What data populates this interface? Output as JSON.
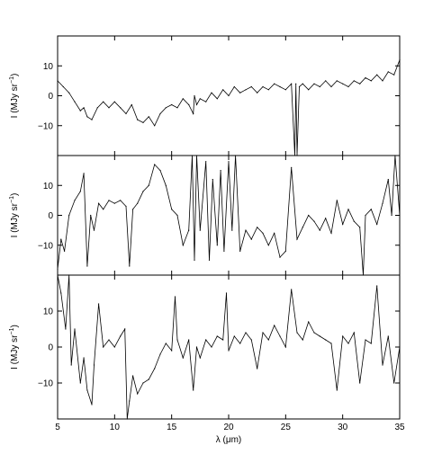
{
  "chart_data": [
    {
      "type": "line",
      "ylabel": "I (MJy sr",
      "ylabel_sup": "−1",
      "ylabel_close": ")",
      "xlim": [
        5,
        35
      ],
      "ylim": [
        -20,
        20
      ],
      "xticks": [
        5,
        10,
        15,
        20,
        25,
        30,
        35
      ],
      "yticks": [
        -10,
        0,
        10
      ],
      "ytick_labels": [
        "−10",
        "0",
        "10"
      ],
      "grid": false,
      "series": [
        {
          "x": [
            5.0,
            5.5,
            6.0,
            6.5,
            7.0,
            7.3,
            7.6,
            8.0,
            8.5,
            9.0,
            9.5,
            10.0,
            10.5,
            11.0,
            11.5,
            12.0,
            12.5,
            13.0,
            13.5,
            14.0,
            14.5,
            15.0,
            15.5,
            16.0,
            16.5,
            16.9,
            17.0,
            17.2,
            17.5,
            18.0,
            18.5,
            19.0,
            19.5,
            20.0,
            20.5,
            21.0,
            21.5,
            22.0,
            22.5,
            23.0,
            23.5,
            24.0,
            24.5,
            25.0,
            25.5,
            25.8,
            25.9,
            26.0,
            26.2,
            26.5,
            27.0,
            27.5,
            28.0,
            28.5,
            29.0,
            29.5,
            30.0,
            30.5,
            31.0,
            31.5,
            32.0,
            32.5,
            33.0,
            33.5,
            34.0,
            34.5,
            35.0
          ],
          "y": [
            5,
            3,
            1,
            -2,
            -5,
            -4,
            -7,
            -8,
            -4,
            -2,
            -4,
            -2,
            -4,
            -6,
            -3,
            -8,
            -9,
            -7,
            -10,
            -6,
            -4,
            -3,
            -4,
            -1,
            -3,
            -6,
            0,
            -3,
            -1,
            -2,
            1,
            -1,
            2,
            0,
            3,
            1,
            2,
            3,
            1,
            3,
            2,
            4,
            3,
            2,
            4,
            -20,
            4,
            -20,
            3,
            4,
            2,
            4,
            3,
            5,
            3,
            5,
            4,
            3,
            5,
            4,
            6,
            5,
            7,
            5,
            8,
            7,
            12
          ]
        }
      ]
    },
    {
      "type": "line",
      "ylabel": "I (MJy sr",
      "ylabel_sup": "−1",
      "ylabel_close": ")",
      "xlim": [
        5,
        35
      ],
      "ylim": [
        -20,
        20
      ],
      "xticks": [
        5,
        10,
        15,
        20,
        25,
        30,
        35
      ],
      "yticks": [
        -10,
        0,
        10
      ],
      "ytick_labels": [
        "−10",
        "0",
        "10"
      ],
      "grid": false,
      "series": [
        {
          "x": [
            5.0,
            5.3,
            5.6,
            6.0,
            6.5,
            7.0,
            7.3,
            7.6,
            7.9,
            8.2,
            8.6,
            9.0,
            9.5,
            10.0,
            10.5,
            11.0,
            11.3,
            11.6,
            12.0,
            12.5,
            13.0,
            13.5,
            14.0,
            14.5,
            15.0,
            15.5,
            16.0,
            16.5,
            16.8,
            17.0,
            17.2,
            17.5,
            18.0,
            18.3,
            18.6,
            19.0,
            19.3,
            19.6,
            20.0,
            20.3,
            20.6,
            21.0,
            21.5,
            22.0,
            22.5,
            23.0,
            23.5,
            24.0,
            24.5,
            25.0,
            25.5,
            26.0,
            26.5,
            27.0,
            27.5,
            28.0,
            28.5,
            29.0,
            29.5,
            30.0,
            30.5,
            31.0,
            31.5,
            31.8,
            32.0,
            32.5,
            33.0,
            33.5,
            34.0,
            34.3,
            34.6,
            35.0
          ],
          "y": [
            -18,
            -8,
            -12,
            0,
            5,
            8,
            14,
            -17,
            0,
            -5,
            4,
            2,
            5,
            4,
            5,
            3,
            -17,
            2,
            4,
            8,
            10,
            17,
            15,
            10,
            2,
            0,
            -10,
            -5,
            20,
            -15,
            20,
            -5,
            18,
            -15,
            12,
            -10,
            15,
            -12,
            18,
            -5,
            20,
            -12,
            -5,
            -8,
            -4,
            -6,
            -10,
            -6,
            -14,
            -12,
            16,
            -8,
            -4,
            0,
            -2,
            -5,
            -1,
            -6,
            5,
            -3,
            2,
            -2,
            -4,
            -20,
            0,
            2,
            -3,
            4,
            12,
            0,
            20,
            0
          ]
        }
      ]
    },
    {
      "type": "line",
      "ylabel": "I (MJy sr",
      "ylabel_sup": "−1",
      "ylabel_close": ")",
      "xlabel": "λ (μm)",
      "xlim": [
        5,
        35
      ],
      "ylim": [
        -20,
        20
      ],
      "xticks": [
        5,
        10,
        15,
        20,
        25,
        30,
        35
      ],
      "yticks": [
        -10,
        0,
        10
      ],
      "ytick_labels": [
        "−10",
        "0",
        "10"
      ],
      "grid": false,
      "series": [
        {
          "x": [
            5.0,
            5.3,
            5.7,
            6.0,
            6.2,
            6.5,
            7.0,
            7.3,
            7.6,
            8.0,
            8.2,
            8.6,
            9.0,
            9.5,
            10.0,
            10.5,
            10.9,
            11.1,
            11.3,
            11.6,
            12.0,
            12.5,
            13.0,
            13.5,
            14.0,
            14.5,
            15.0,
            15.3,
            15.5,
            16.0,
            16.5,
            16.9,
            17.2,
            17.5,
            18.0,
            18.5,
            19.0,
            19.5,
            19.8,
            20.0,
            20.5,
            21.0,
            21.5,
            22.0,
            22.5,
            23.0,
            23.5,
            24.0,
            24.5,
            25.0,
            25.5,
            26.0,
            26.5,
            27.0,
            27.5,
            28.0,
            28.5,
            29.0,
            29.5,
            30.0,
            30.5,
            31.0,
            31.5,
            32.0,
            32.5,
            33.0,
            33.5,
            34.0,
            34.5,
            35.0
          ],
          "y": [
            20,
            15,
            5,
            20,
            -5,
            5,
            -10,
            -3,
            -12,
            -16,
            -5,
            12,
            0,
            2,
            0,
            3,
            5,
            -20,
            -15,
            -8,
            -13,
            -10,
            -9,
            -6,
            -2,
            1,
            -1,
            14,
            2,
            -3,
            2,
            -12,
            0,
            -3,
            2,
            0,
            3,
            2,
            15,
            -1,
            3,
            1,
            4,
            2,
            -6,
            4,
            2,
            6,
            3,
            0,
            16,
            4,
            2,
            7,
            4,
            3,
            2,
            1,
            -12,
            3,
            1,
            4,
            -10,
            2,
            1,
            17,
            -5,
            3,
            -10,
            0
          ]
        }
      ]
    }
  ]
}
